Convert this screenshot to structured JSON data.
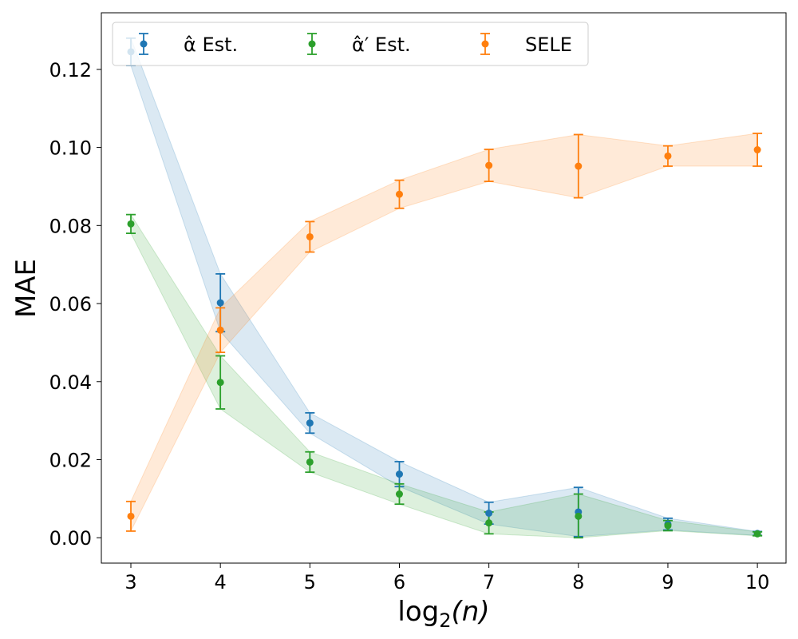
{
  "chart_data": {
    "type": "line",
    "title": "",
    "xlabel": "log2(n)",
    "xlabel_parts": {
      "base": "log",
      "sub": "2",
      "arg": "(n)"
    },
    "ylabel": "MAE",
    "x": [
      3,
      4,
      5,
      6,
      7,
      8,
      9,
      10
    ],
    "xticks": [
      "3",
      "4",
      "5",
      "6",
      "7",
      "8",
      "9",
      "10"
    ],
    "yticks": [
      "0.00",
      "0.02",
      "0.04",
      "0.06",
      "0.08",
      "0.10",
      "0.12"
    ],
    "xlim": [
      2.67,
      10.32
    ],
    "ylim": [
      -0.0065,
      0.1345
    ],
    "grid": false,
    "legend_position": "top-left",
    "series": [
      {
        "name": "α̂ Est.",
        "legend_label": "α̂ Est.",
        "color": "#1f77b4",
        "values": [
          0.1245,
          0.0602,
          0.0294,
          0.0163,
          0.0063,
          0.0066,
          0.0035,
          0.0011
        ],
        "lower": [
          0.121,
          0.0528,
          0.0268,
          0.0131,
          0.0035,
          0.0003,
          0.002,
          0.0006
        ],
        "upper": [
          0.128,
          0.0676,
          0.032,
          0.0195,
          0.0091,
          0.0129,
          0.005,
          0.0016
        ]
      },
      {
        "name": "α̂′ Est.",
        "legend_label": "α̂′ Est.",
        "color": "#2ca02c",
        "values": [
          0.0804,
          0.0398,
          0.0194,
          0.0112,
          0.0038,
          0.0055,
          0.0031,
          0.001
        ],
        "lower": [
          0.078,
          0.033,
          0.0168,
          0.0086,
          0.001,
          0.0,
          0.0018,
          0.0005
        ],
        "upper": [
          0.0828,
          0.0466,
          0.022,
          0.0138,
          0.0066,
          0.0112,
          0.0044,
          0.0015
        ]
      },
      {
        "name": "SELE",
        "legend_label": "SELE",
        "color": "#ff7f0e",
        "values": [
          0.0055,
          0.0532,
          0.0771,
          0.088,
          0.0954,
          0.0952,
          0.0978,
          0.0994
        ],
        "lower": [
          0.0017,
          0.0475,
          0.0732,
          0.0844,
          0.0913,
          0.0871,
          0.0952,
          0.0952
        ],
        "upper": [
          0.0093,
          0.0589,
          0.081,
          0.0916,
          0.0995,
          0.1033,
          0.1004,
          0.1036
        ]
      }
    ]
  }
}
